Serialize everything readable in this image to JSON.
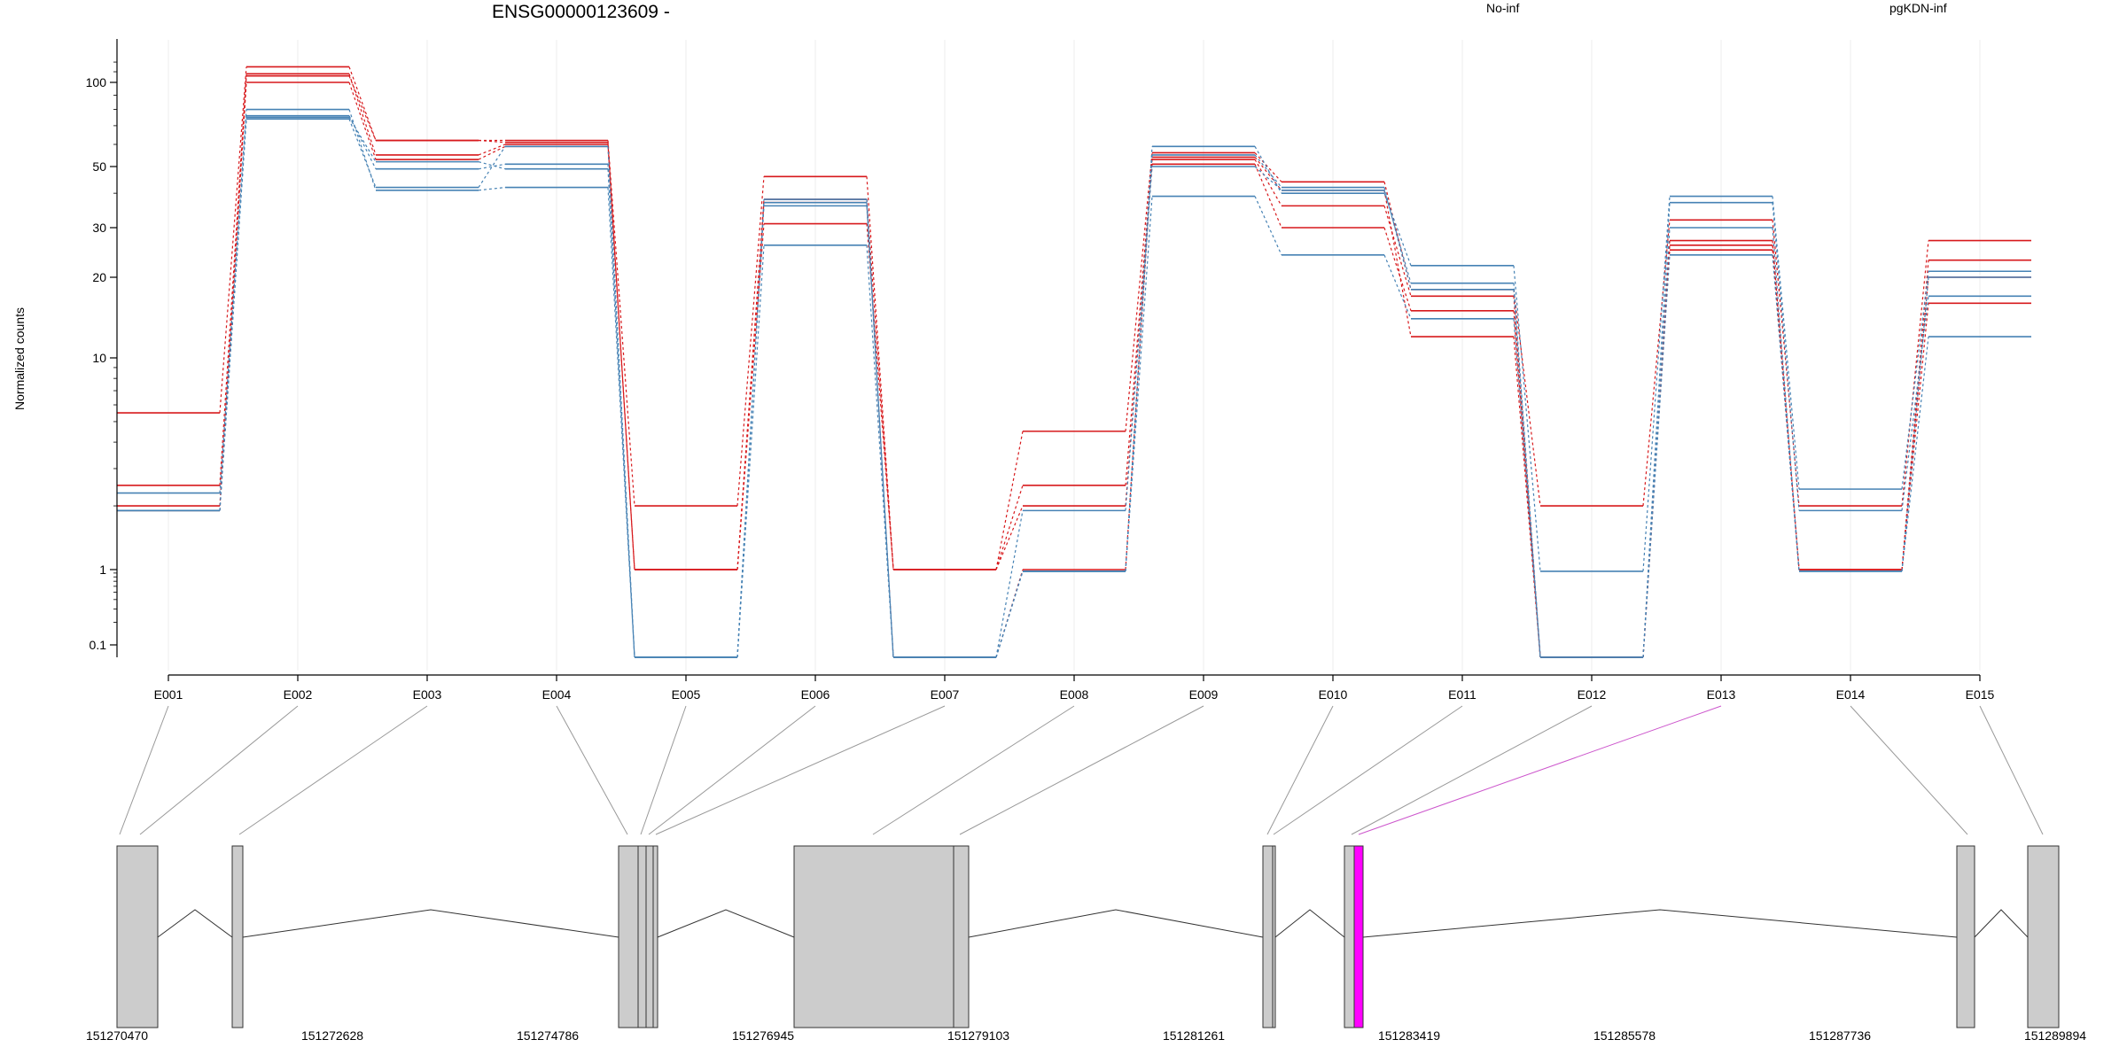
{
  "chart_data": {
    "type": "line",
    "title": "ENSG00000123609 -",
    "ylabel": "Normalized counts",
    "xlabel": "",
    "y_scale": "log-ish (0.1 to ~130)",
    "grid": "vertical only",
    "legend_placement": "top-right",
    "categories": [
      "E001",
      "E002",
      "E003",
      "E004",
      "E005",
      "E006",
      "E007",
      "E008",
      "E009",
      "E010",
      "E011",
      "E012",
      "E013",
      "E014",
      "E015"
    ],
    "y_ticks": [
      {
        "value": 0.1,
        "label": "0.1"
      },
      {
        "value": 1,
        "label": "1"
      },
      {
        "value": 10,
        "label": "10"
      },
      {
        "value": 20,
        "label": "20"
      },
      {
        "value": 30,
        "label": "30"
      },
      {
        "value": 50,
        "label": "50"
      },
      {
        "value": 100,
        "label": "100"
      }
    ],
    "series": [
      {
        "name": "No-inf",
        "color": "#d7191c",
        "replicates": [
          [
            5.5,
            115,
            62,
            62,
            2,
            46,
            1,
            4.5,
            56,
            44,
            18,
            2,
            32,
            2,
            27
          ],
          [
            2.5,
            108,
            55,
            60,
            1,
            38,
            1,
            2.5,
            53,
            36,
            17,
            0.07,
            27,
            1,
            23
          ],
          [
            2.0,
            100,
            53,
            59,
            1,
            31,
            1,
            2.0,
            51,
            30,
            15,
            0.07,
            26,
            1,
            20
          ],
          [
            1.9,
            106,
            62,
            61,
            1,
            37,
            0.07,
            1.0,
            54,
            41,
            12,
            0.07,
            25,
            1,
            16
          ]
        ]
      },
      {
        "name": "pgKDN-inf",
        "color": "#4682b4",
        "replicates": [
          [
            2.3,
            80,
            41,
            42,
            0.07,
            38,
            0.07,
            0.95,
            59,
            40,
            22,
            0.95,
            39,
            2.4,
            21
          ],
          [
            1.9,
            76,
            49,
            51,
            0.07,
            37,
            0.07,
            1.9,
            50,
            41,
            19,
            0.07,
            37,
            1.9,
            17
          ],
          [
            1.9,
            74,
            42,
            59,
            0.07,
            26,
            0.07,
            0.95,
            39,
            24,
            14,
            0.07,
            24,
            0.95,
            12
          ],
          [
            1.9,
            75,
            52,
            49,
            0.07,
            36,
            0.07,
            0.95,
            55,
            42,
            18,
            0.07,
            30,
            0.95,
            20
          ]
        ]
      }
    ]
  },
  "gene_model": {
    "coordinate_labels": [
      "151270470",
      "151272628",
      "151274786",
      "151276945",
      "151279103",
      "151281261",
      "151283419",
      "151285578",
      "151287736",
      "151289894"
    ],
    "exon_fill": "#cccccc",
    "highlight_fill": "#ff00ff",
    "highlighted_exon": "E013"
  }
}
